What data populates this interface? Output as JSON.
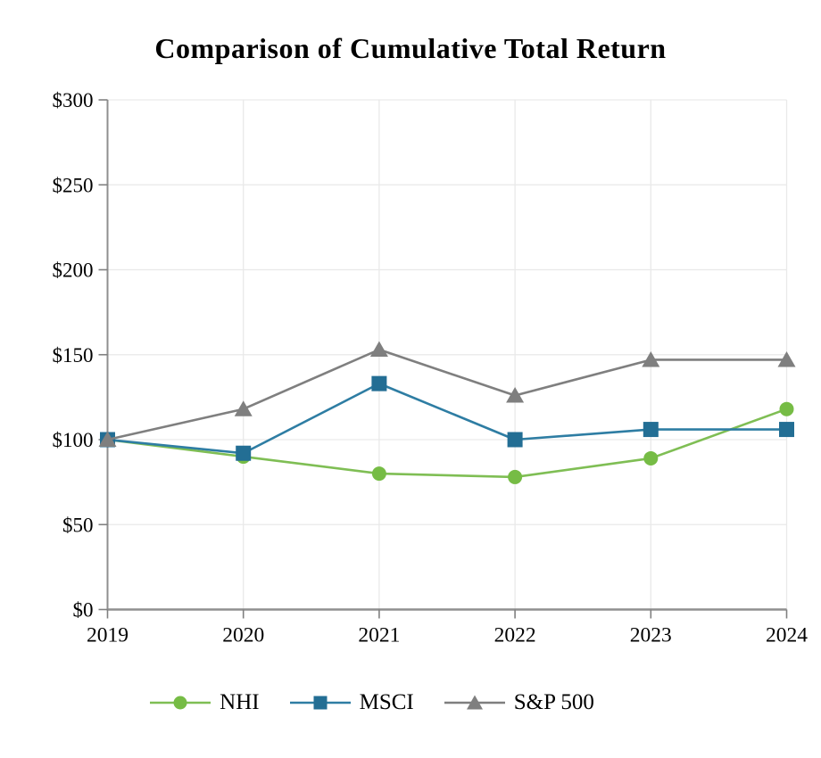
{
  "chart_data": {
    "type": "line",
    "title": "Comparison of Cumulative Total Return",
    "xlabel": "",
    "ylabel": "",
    "x_tick_labels": [
      "2019",
      "2020",
      "2021",
      "2022",
      "2023",
      "2024"
    ],
    "y_ticks": [
      0,
      50,
      100,
      150,
      200,
      250,
      300
    ],
    "y_tick_labels": [
      "$0",
      "$50",
      "$100",
      "$150",
      "$200",
      "$250",
      "$300"
    ],
    "ylim": [
      0,
      300
    ],
    "grid": true,
    "legend_position": "bottom",
    "series": [
      {
        "name": "NHI",
        "marker": "circle",
        "marker_color": "#76BC45",
        "line_color": "#7FBE54",
        "values": [
          100,
          90,
          80,
          78,
          89,
          118
        ]
      },
      {
        "name": "MSCI",
        "marker": "square",
        "marker_color": "#236E94",
        "line_color": "#2E7DA3",
        "values": [
          100,
          92,
          133,
          100,
          106,
          106
        ]
      },
      {
        "name": "S&P 500",
        "marker": "triangle",
        "marker_color": "#7F7F7F",
        "line_color": "#7F7F7F",
        "values": [
          100,
          118,
          153,
          126,
          147,
          147
        ]
      }
    ],
    "style": {
      "gridline_color": "#E9E9E9",
      "axis_color": "#8F8F8F",
      "tick_color": "#808080",
      "text_color": "#000000"
    }
  }
}
